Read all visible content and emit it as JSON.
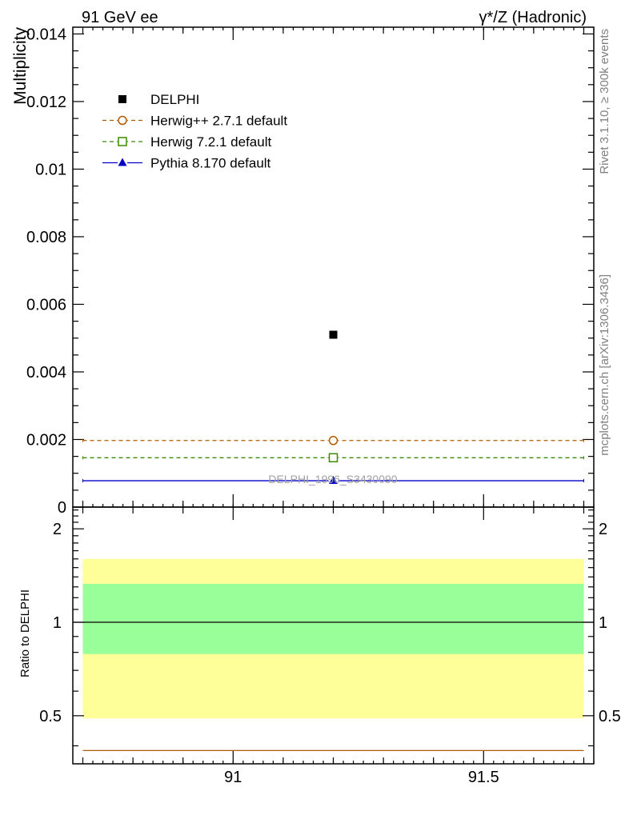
{
  "header": {
    "left": "91 GeV ee",
    "right": "γ*/Z (Hadronic)"
  },
  "side_labels": {
    "rivet": "Rivet 3.1.10, ≥ 300k events",
    "mcplots": "mcplots.cern.ch [arXiv:1306.3436]"
  },
  "watermark": "DELPHI_1996_S3430090",
  "chart_data": [
    {
      "type": "scatter",
      "ylabel": "Multiplicity",
      "xlim": [
        90.68,
        91.72
      ],
      "ylim": [
        0,
        0.0142
      ],
      "y_tick_values": [
        0,
        0.002,
        0.004,
        0.006,
        0.008,
        0.01,
        0.012,
        0.014
      ],
      "y_tick_labels": [
        "0",
        "0.002",
        "0.004",
        "0.006",
        "0.008",
        "0.01",
        "0.012",
        "0.014"
      ],
      "x_range": [
        90.7,
        91.7
      ],
      "legend": [
        {
          "name": "DELPHI",
          "color": "#000000",
          "marker": "filled-square",
          "line": "none"
        },
        {
          "name": "Herwig++ 2.7.1 default",
          "color": "#b05a00",
          "marker": "open-circle",
          "line": "dashed"
        },
        {
          "name": "Herwig 7.2.1 default",
          "color": "#3a8a00",
          "marker": "open-square",
          "line": "dashed"
        },
        {
          "name": "Pythia 8.170 default",
          "color": "#0000cc",
          "marker": "filled-triangle",
          "line": "solid"
        }
      ],
      "series": [
        {
          "name": "DELPHI",
          "x": [
            91.2
          ],
          "y": [
            0.0051
          ]
        },
        {
          "name": "Herwig++ 2.7.1 default",
          "x": [
            91.2
          ],
          "y": [
            0.00197
          ]
        },
        {
          "name": "Herwig 7.2.1 default",
          "x": [
            91.2
          ],
          "y": [
            0.00146
          ]
        },
        {
          "name": "Pythia 8.170 default",
          "x": [
            91.2
          ],
          "y": [
            0.00078
          ]
        }
      ]
    },
    {
      "type": "area",
      "ylabel": "Ratio to DELPHI",
      "xlim": [
        90.68,
        91.72
      ],
      "ylim": [
        0.35,
        2.35
      ],
      "y_tick_values": [
        0.5,
        1,
        2
      ],
      "y_tick_labels": [
        "0.5",
        "1",
        "2"
      ],
      "x_tick_values": [
        91,
        91.5
      ],
      "x_tick_labels": [
        "91",
        "91.5"
      ],
      "reference_line": 1,
      "bands": [
        {
          "name": "total uncertainty",
          "low": 0.49,
          "high": 1.6,
          "color": "#ffff99"
        },
        {
          "name": "statistical uncertainty",
          "low": 0.79,
          "high": 1.33,
          "color": "#99ff99"
        }
      ]
    }
  ]
}
